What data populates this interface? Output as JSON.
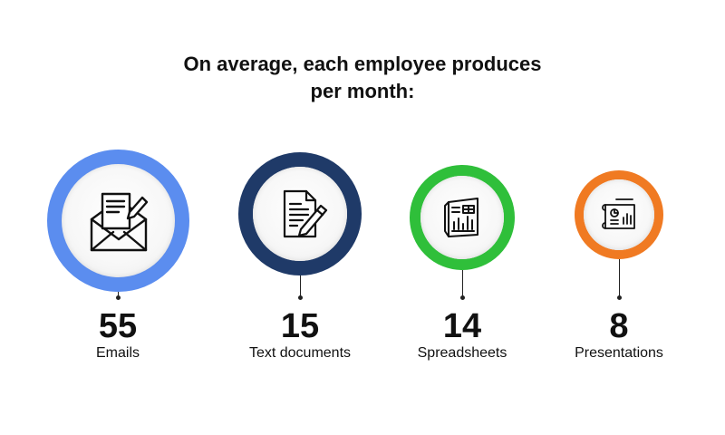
{
  "title": {
    "line1": "On average, each employee produces",
    "line2": "per month:"
  },
  "stats": [
    {
      "value": "55",
      "label": "Emails",
      "icon": "email-icon",
      "color": "#5b8def"
    },
    {
      "value": "15",
      "label": "Text documents",
      "icon": "document-icon",
      "color": "#1f3a68"
    },
    {
      "value": "14",
      "label": "Spreadsheets",
      "icon": "spreadsheet-icon",
      "color": "#2fbf3a"
    },
    {
      "value": "8",
      "label": "Presentations",
      "icon": "presentation-icon",
      "color": "#f07a22"
    }
  ]
}
